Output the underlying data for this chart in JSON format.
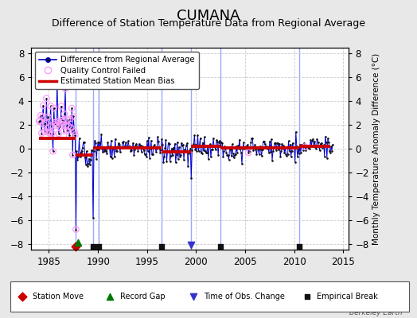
{
  "title": "CUMANA",
  "subtitle": "Difference of Station Temperature Data from Regional Average",
  "ylabel": "Monthly Temperature Anomaly Difference (°C)",
  "ylim": [
    -8.5,
    8.5
  ],
  "yticks": [
    -8,
    -6,
    -4,
    -2,
    0,
    2,
    4,
    6,
    8
  ],
  "xticks": [
    1985,
    1990,
    1995,
    2000,
    2005,
    2010,
    2015
  ],
  "xlim": [
    1983.2,
    2015.5
  ],
  "bg_color": "#e8e8e8",
  "plot_bg_color": "#ffffff",
  "watermark": "Berkeley Earth",
  "title_fontsize": 13,
  "subtitle_fontsize": 9,
  "segment_biases": [
    {
      "x_start": 1984.0,
      "x_end": 1987.75,
      "bias": 0.85
    },
    {
      "x_start": 1987.75,
      "x_end": 1989.5,
      "bias": -0.55
    },
    {
      "x_start": 1989.5,
      "x_end": 1996.5,
      "bias": 0.08
    },
    {
      "x_start": 1996.5,
      "x_end": 1999.5,
      "bias": -0.25
    },
    {
      "x_start": 1999.5,
      "x_end": 2002.5,
      "bias": 0.18
    },
    {
      "x_start": 2002.5,
      "x_end": 2010.5,
      "bias": 0.08
    },
    {
      "x_start": 2010.5,
      "x_end": 2013.7,
      "bias": 0.18
    }
  ],
  "break_lines": [
    1987.75,
    1989.5,
    1990.1,
    1996.5,
    1999.5,
    2002.5,
    2010.5
  ],
  "event_markers": [
    {
      "x": 1987.7,
      "type": "station_move",
      "color": "#cc0000"
    },
    {
      "x": 1988.0,
      "type": "record_gap",
      "color": "#007700"
    },
    {
      "x": 1989.5,
      "type": "empirical_break",
      "color": "#111111"
    },
    {
      "x": 1990.1,
      "type": "empirical_break",
      "color": "#111111"
    },
    {
      "x": 1996.5,
      "type": "empirical_break",
      "color": "#111111"
    },
    {
      "x": 1999.5,
      "type": "time_obs_change",
      "color": "#3333cc"
    },
    {
      "x": 2002.5,
      "type": "empirical_break",
      "color": "#111111"
    },
    {
      "x": 2010.5,
      "type": "empirical_break",
      "color": "#111111"
    }
  ],
  "line_color": "#0000cc",
  "dot_color": "#111111",
  "bias_color": "#cc0000",
  "qc_color": "#ff99ff",
  "legend_line_label": "Difference from Regional Average",
  "legend_qc_label": "Quality Control Failed",
  "legend_bias_label": "Estimated Station Mean Bias",
  "bl_station": "Station Move",
  "bl_gap": "Record Gap",
  "bl_timeobs": "Time of Obs. Change",
  "bl_empirical": "Empirical Break"
}
